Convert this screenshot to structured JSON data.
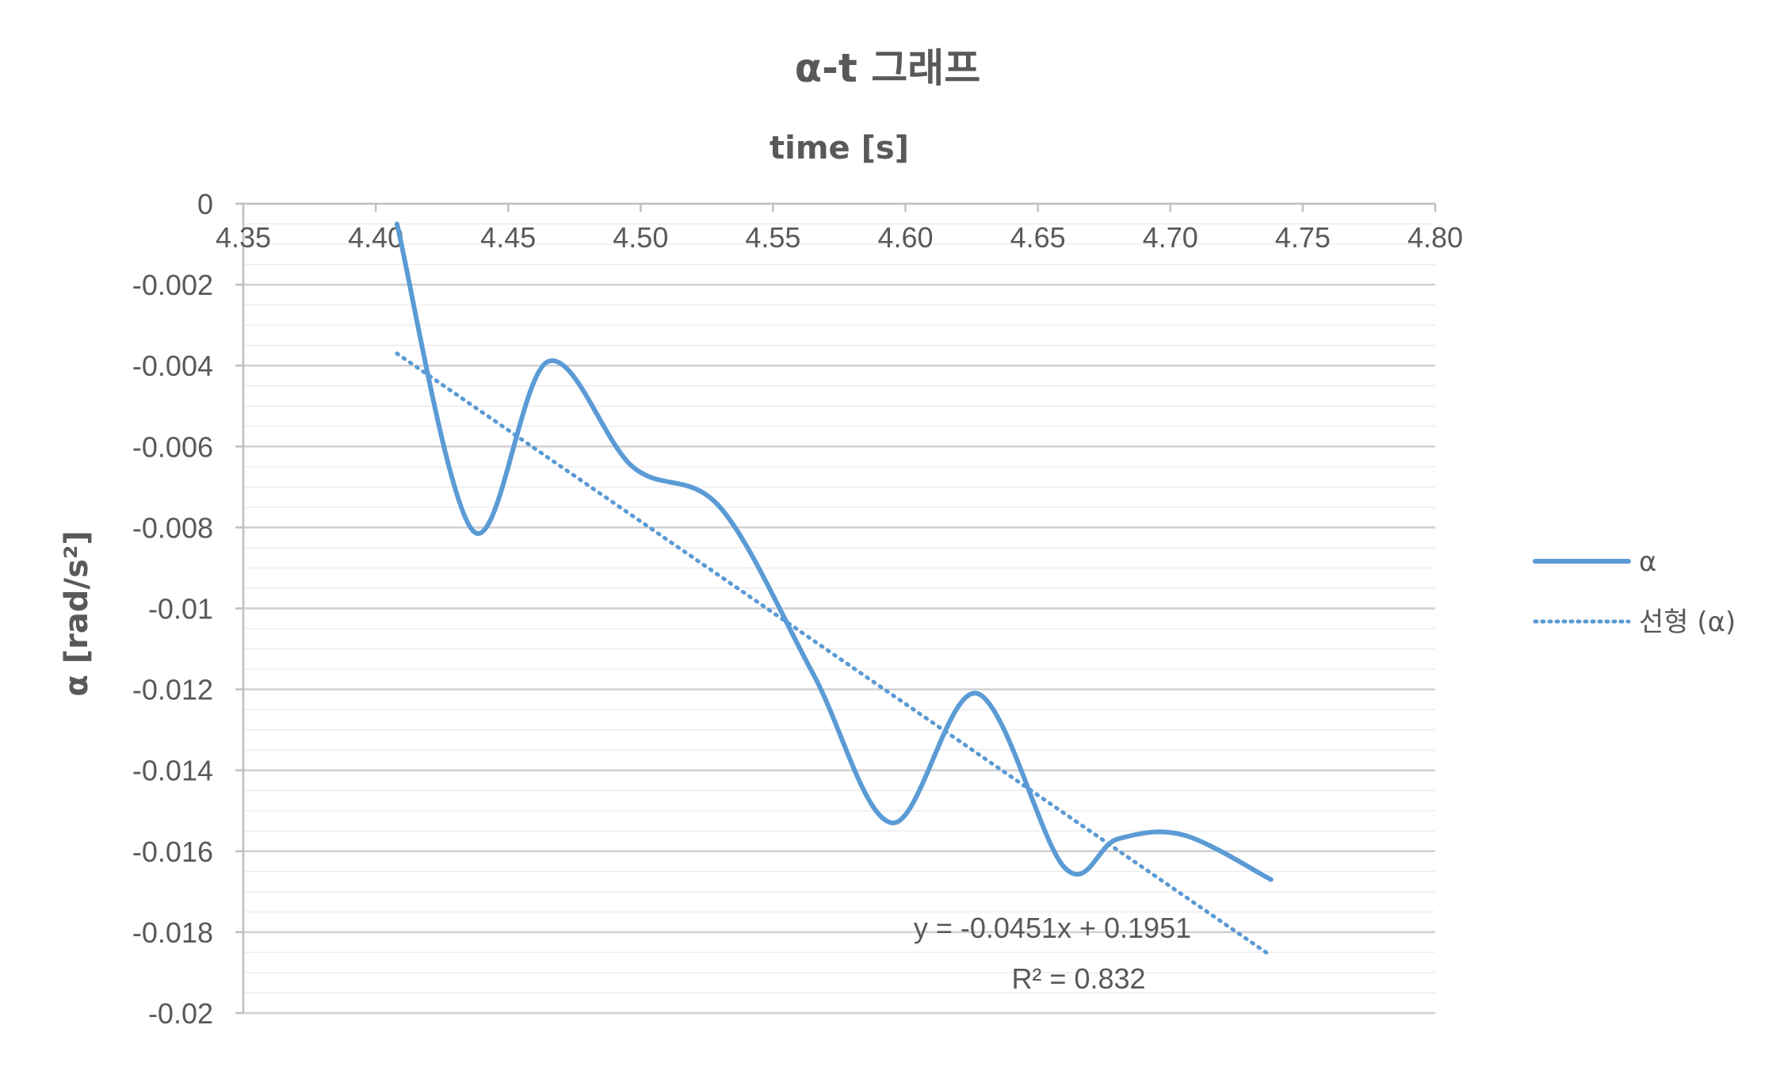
{
  "chart_data": {
    "type": "line",
    "title": "α-t 그래프",
    "xlabel": "time [s]",
    "ylabel": "α [rad/s²]",
    "xlim": [
      4.35,
      4.8
    ],
    "ylim": [
      -0.02,
      0
    ],
    "x_ticks": [
      "4.35",
      "4.40",
      "4.45",
      "4.50",
      "4.55",
      "4.60",
      "4.65",
      "4.70",
      "4.75",
      "4.80"
    ],
    "y_ticks": [
      "0",
      "-0.002",
      "-0.004",
      "-0.006",
      "-0.008",
      "-0.01",
      "-0.012",
      "-0.014",
      "-0.016",
      "-0.018",
      "-0.02"
    ],
    "x_axis_position": "top",
    "grid": true,
    "legend_position": "right",
    "series": [
      {
        "name": "α",
        "color": "#5b9bd5",
        "style": "smooth-solid",
        "x": [
          4.408,
          4.437,
          4.465,
          4.497,
          4.53,
          4.565,
          4.595,
          4.627,
          4.66,
          4.68,
          4.705,
          4.738
        ],
        "y": [
          -0.0005,
          -0.0081,
          -0.0039,
          -0.0065,
          -0.0075,
          -0.0116,
          -0.0153,
          -0.0121,
          -0.0164,
          -0.0157,
          -0.0156,
          -0.0167
        ]
      }
    ],
    "trendline": {
      "name": "선형 (α)",
      "color": "#5b9bd5",
      "style": "dotted",
      "x_range": [
        4.408,
        4.738
      ],
      "slope": -0.0451,
      "intercept": 0.1951,
      "equation": "y = -0.0451x + 0.1951",
      "r_squared": "R² = 0.832"
    }
  }
}
